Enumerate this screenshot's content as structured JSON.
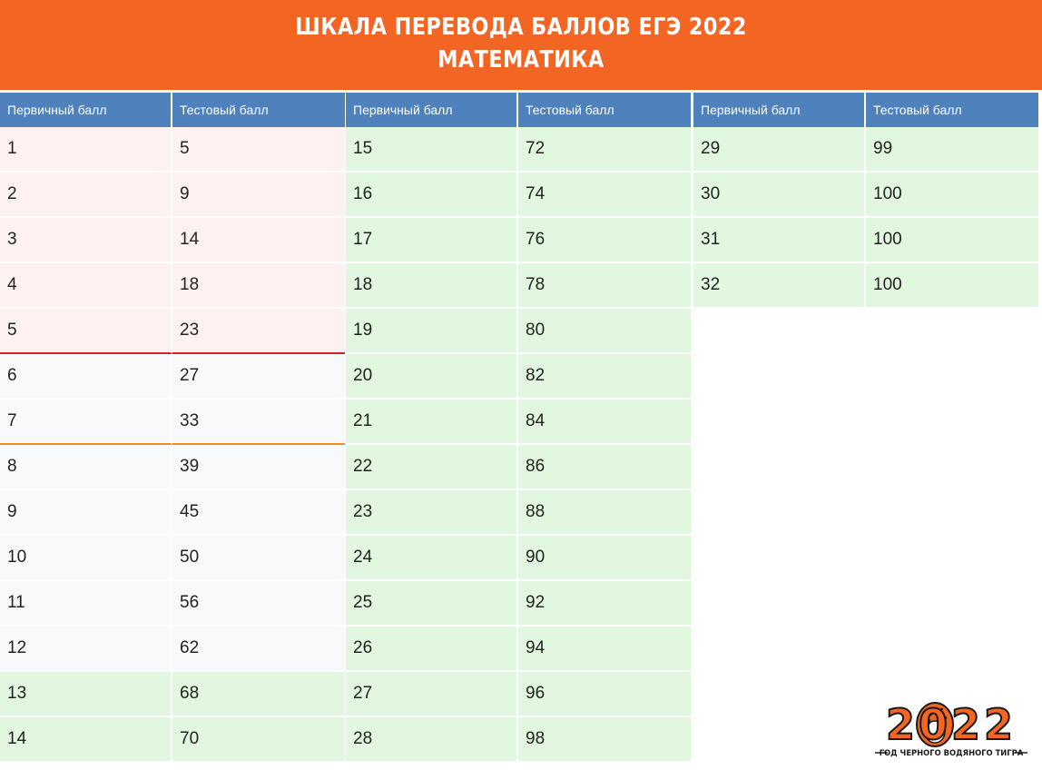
{
  "header": {
    "title_line1": "ШКАЛА ПЕРЕВОДА БАЛЛОВ ЕГЭ 2022",
    "title_line2": "МАТЕМАТИКА"
  },
  "table": {
    "headers": {
      "primary": "Первичный балл",
      "test": "Тестовый балл"
    },
    "columns": [
      [
        [
          "1",
          "5"
        ],
        [
          "2",
          "9"
        ],
        [
          "3",
          "14"
        ],
        [
          "4",
          "18"
        ],
        [
          "5",
          "23"
        ],
        [
          "6",
          "27"
        ],
        [
          "7",
          "33"
        ],
        [
          "8",
          "39"
        ],
        [
          "9",
          "45"
        ],
        [
          "10",
          "50"
        ],
        [
          "11",
          "56"
        ],
        [
          "12",
          "62"
        ],
        [
          "13",
          "68"
        ],
        [
          "14",
          "70"
        ]
      ],
      [
        [
          "15",
          "72"
        ],
        [
          "16",
          "74"
        ],
        [
          "17",
          "76"
        ],
        [
          "18",
          "78"
        ],
        [
          "19",
          "80"
        ],
        [
          "20",
          "82"
        ],
        [
          "21",
          "84"
        ],
        [
          "22",
          "86"
        ],
        [
          "23",
          "88"
        ],
        [
          "24",
          "90"
        ],
        [
          "25",
          "92"
        ],
        [
          "26",
          "94"
        ],
        [
          "27",
          "96"
        ],
        [
          "28",
          "98"
        ]
      ],
      [
        [
          "29",
          "99"
        ],
        [
          "30",
          "100"
        ],
        [
          "31",
          "100"
        ],
        [
          "32",
          "100"
        ]
      ]
    ]
  },
  "colors": {
    "banner": "#f26522",
    "header_row": "#4f81bd",
    "below_minimum": "#fdf1f1",
    "basic_range": "#f7f9fb",
    "high_range": "#e2f7df",
    "minimum_line": "#d2232a",
    "threshold_line": "#f08a24"
  },
  "logo": {
    "year": "2022",
    "caption": "ГОД ЧЕРНОГО ВОДЯНОГО ТИГРА",
    "icon": "tiger-head-icon"
  }
}
